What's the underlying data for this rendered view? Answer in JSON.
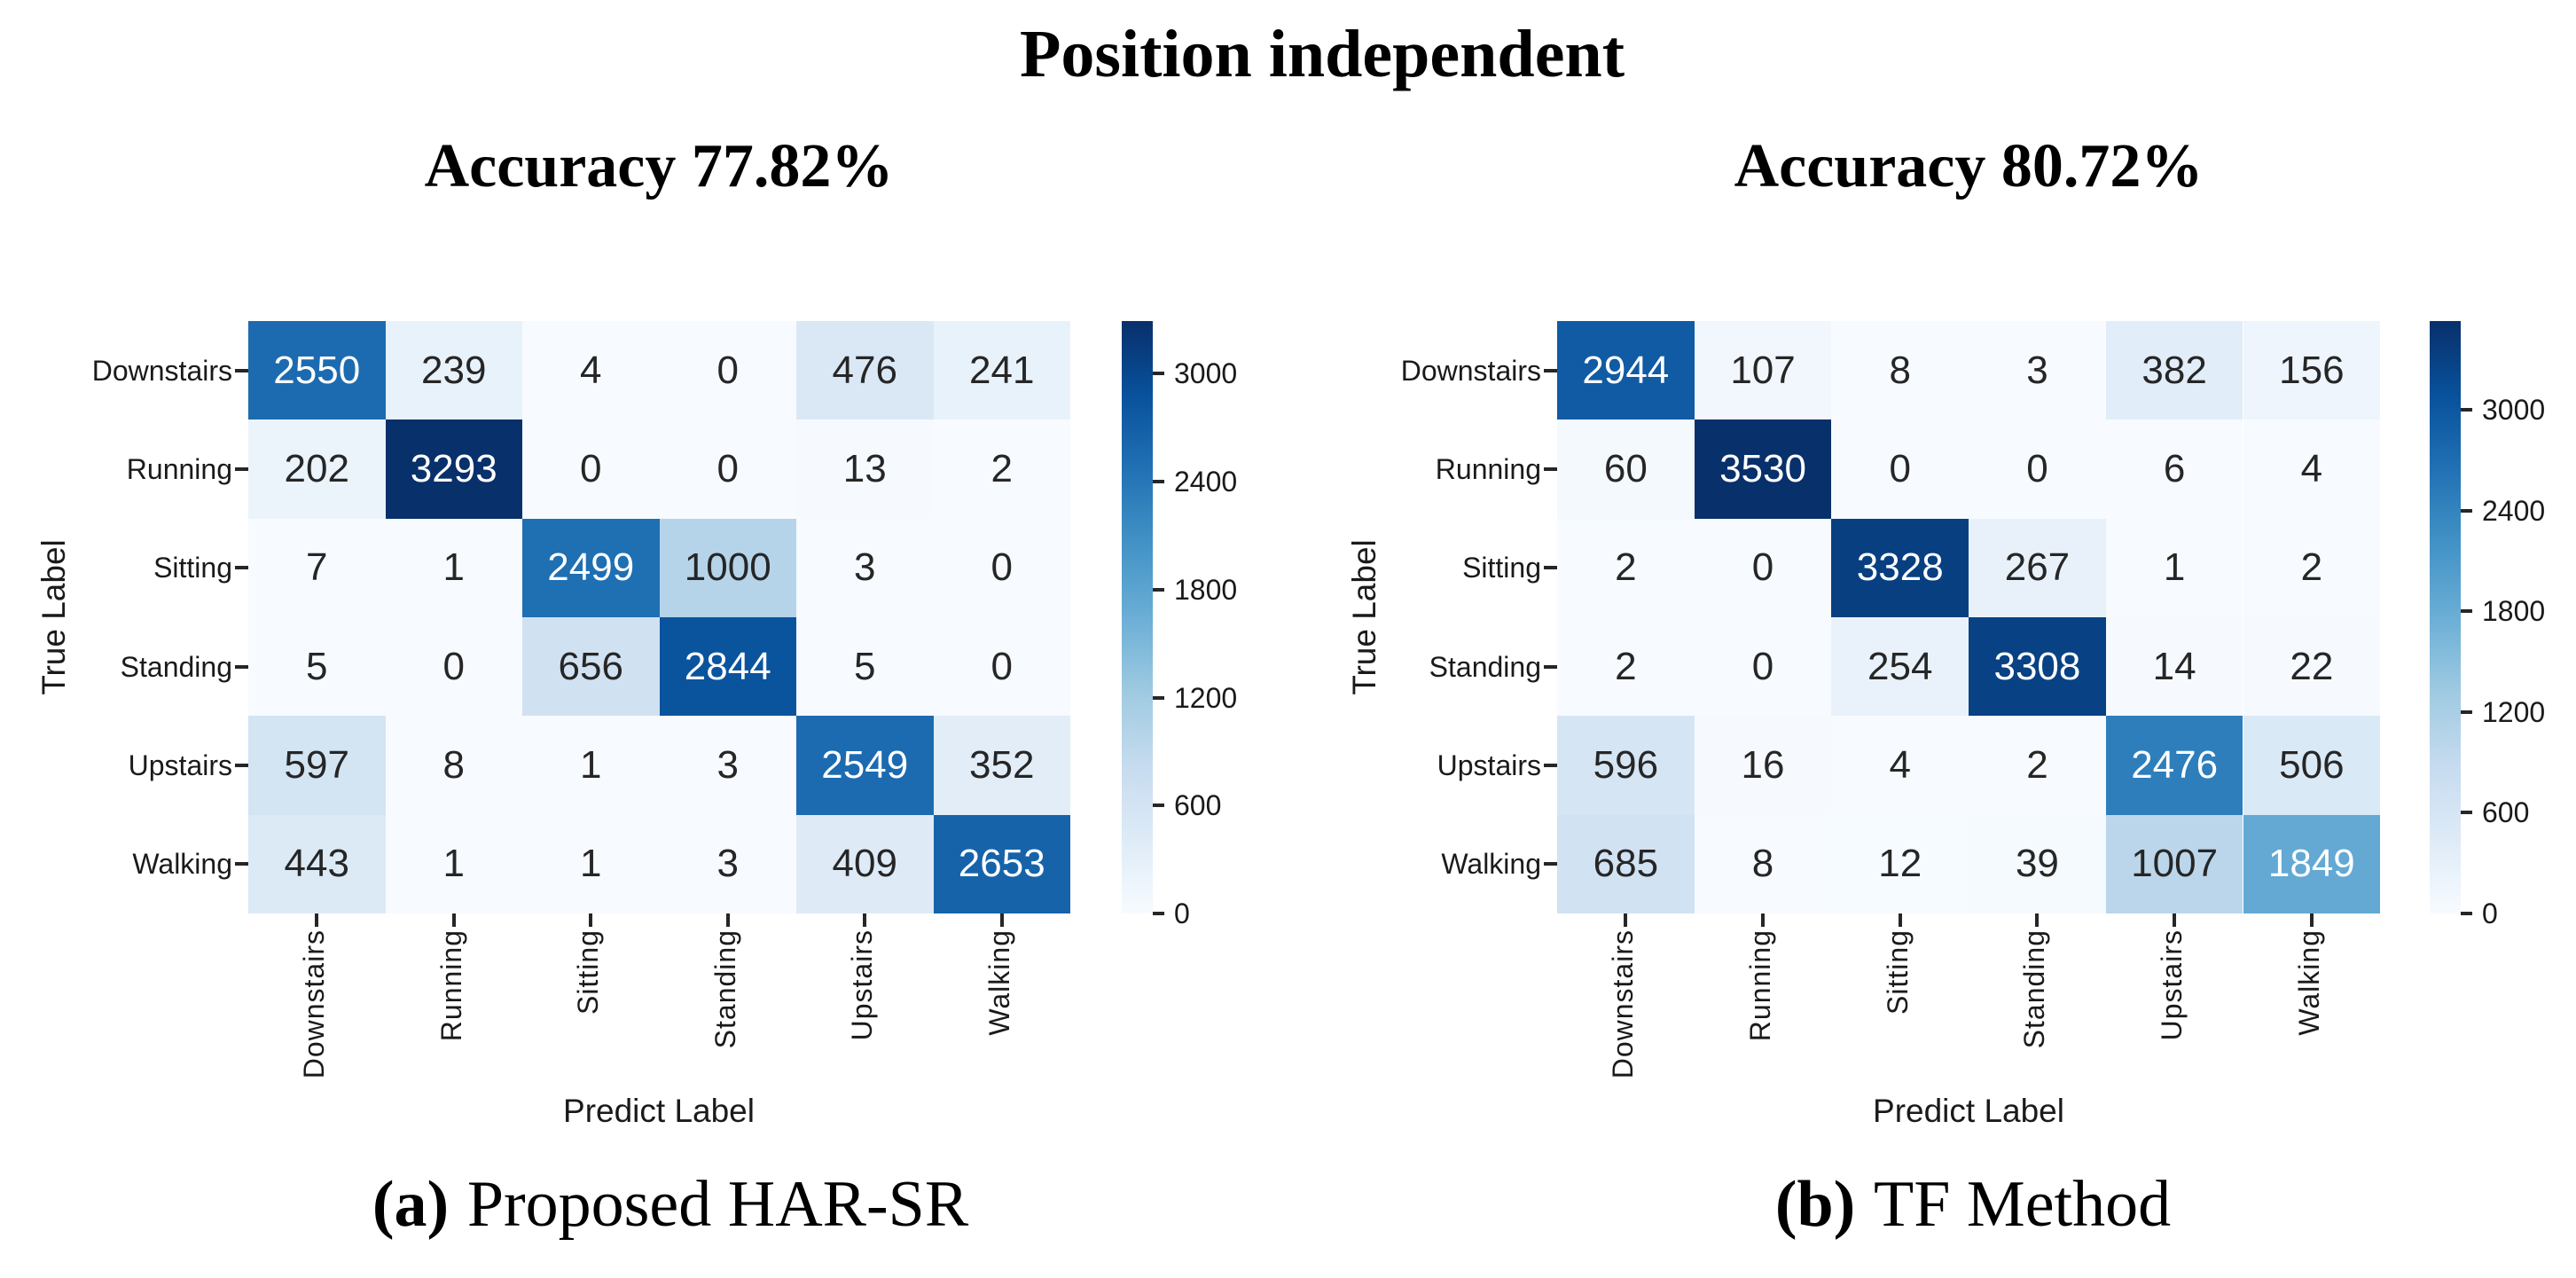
{
  "suptitle": "Position independent",
  "classes": [
    "Downstairs",
    "Running",
    "Sitting",
    "Standing",
    "Upstairs",
    "Walking"
  ],
  "colors": {
    "background": "#ffffff",
    "colormap_name": "Blues",
    "blues_stops": [
      "#f7fbff",
      "#deebf7",
      "#c6dbef",
      "#9ecae1",
      "#6baed6",
      "#4292c6",
      "#2171b5",
      "#08519c",
      "#08306b"
    ],
    "cell_text_dark": "#262626",
    "cell_text_light": "#ffffff",
    "tick_color": "#262626"
  },
  "chart_data": [
    {
      "type": "heatmap",
      "title": "Accuracy 77.82%",
      "caption_prefix": "(a)",
      "caption": "Proposed HAR-SR",
      "xlabel": "Predict Label",
      "ylabel": "True Label",
      "x_categories": [
        "Downstairs",
        "Running",
        "Sitting",
        "Standing",
        "Upstairs",
        "Walking"
      ],
      "y_categories": [
        "Downstairs",
        "Running",
        "Sitting",
        "Standing",
        "Upstairs",
        "Walking"
      ],
      "values": [
        [
          2550,
          239,
          4,
          0,
          476,
          241
        ],
        [
          202,
          3293,
          0,
          0,
          13,
          2
        ],
        [
          7,
          1,
          2499,
          1000,
          3,
          0
        ],
        [
          5,
          0,
          656,
          2844,
          5,
          0
        ],
        [
          597,
          8,
          1,
          3,
          2549,
          352
        ],
        [
          443,
          1,
          1,
          3,
          409,
          2653
        ]
      ],
      "vmin": 0,
      "vmax": 3293,
      "colormap": "Blues",
      "annotated": true,
      "grid": false,
      "colorbar_position": "right",
      "colorbar_ticks": [
        0,
        600,
        1200,
        1800,
        2400,
        3000
      ]
    },
    {
      "type": "heatmap",
      "title": "Accuracy 80.72%",
      "caption_prefix": "(b)",
      "caption": "TF Method",
      "xlabel": "Predict Label",
      "ylabel": "True Label",
      "x_categories": [
        "Downstairs",
        "Running",
        "Sitting",
        "Standing",
        "Upstairs",
        "Walking"
      ],
      "y_categories": [
        "Downstairs",
        "Running",
        "Sitting",
        "Standing",
        "Upstairs",
        "Walking"
      ],
      "values": [
        [
          2944,
          107,
          8,
          3,
          382,
          156
        ],
        [
          60,
          3530,
          0,
          0,
          6,
          4
        ],
        [
          2,
          0,
          3328,
          267,
          1,
          2
        ],
        [
          2,
          0,
          254,
          3308,
          14,
          22
        ],
        [
          596,
          16,
          4,
          2,
          2476,
          506
        ],
        [
          685,
          8,
          12,
          39,
          1007,
          1849
        ]
      ],
      "vmin": 0,
      "vmax": 3530,
      "colormap": "Blues",
      "annotated": true,
      "grid": false,
      "colorbar_position": "right",
      "colorbar_ticks": [
        0,
        600,
        1200,
        1800,
        2400,
        3000
      ]
    }
  ]
}
